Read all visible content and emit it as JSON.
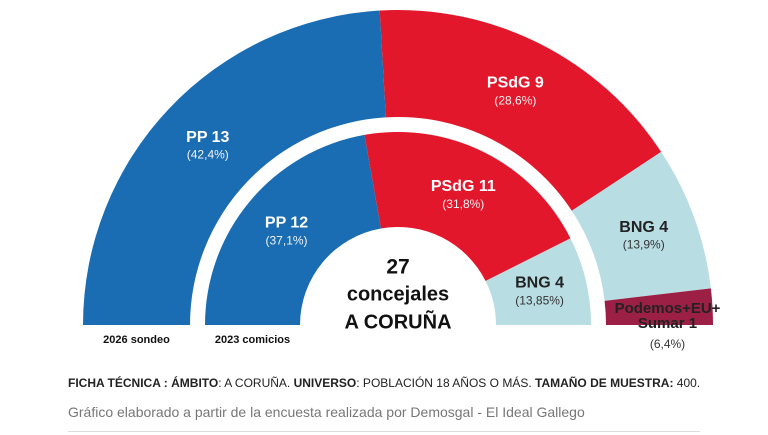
{
  "chart_data": {
    "type": "parliament",
    "total_seats": 27,
    "center_lines": [
      "concejales",
      "A CORUÑA"
    ],
    "rings": [
      {
        "name": "2026 sondeo",
        "segments": [
          {
            "label": "PP 13",
            "seats": 13,
            "share": 42.4,
            "share_label": "(42,4%)",
            "color": "#1a6db3"
          },
          {
            "label": "PSdG 9",
            "seats": 9,
            "share": 28.6,
            "share_label": "(28,6%)",
            "color": "#e3172c"
          },
          {
            "label": "BNG 4",
            "seats": 4,
            "share": 13.9,
            "share_label": "(13,9%)",
            "color": "#b8dde2"
          },
          {
            "label": [
              "Podemos+EU+",
              "Sumar  1"
            ],
            "seats": 1,
            "share": 6.4,
            "share_label": "(6,4%)",
            "color": "#9c2046"
          }
        ]
      },
      {
        "name": "2023 comicios",
        "segments": [
          {
            "label": "PP 12",
            "seats": 12,
            "share": 37.1,
            "share_label": "(37,1%)",
            "color": "#1a6db3"
          },
          {
            "label": "PSdG 11",
            "seats": 11,
            "share": 31.8,
            "share_label": "(31,8%)",
            "color": "#e3172c"
          },
          {
            "label": "BNG 4",
            "seats": 4,
            "share": 13.85,
            "share_label": "(13,85%)",
            "color": "#b8dde2"
          }
        ]
      }
    ]
  },
  "footer": {
    "ficha": [
      {
        "text": "FICHA TÉCNICA : ",
        "bold": true
      },
      {
        "text": "ÁMBITO",
        "bold": true
      },
      {
        "text": ": A CORUÑA. ",
        "bold": false
      },
      {
        "text": "UNIVERSO",
        "bold": true
      },
      {
        "text": ": POBLACIÓN 18 AÑOS O MÁS. ",
        "bold": false
      },
      {
        "text": "TAMAÑO DE MUESTRA:",
        "bold": true
      },
      {
        "text": " 400.",
        "bold": false
      }
    ],
    "source": "Gráfico elaborado a partir de la encuesta realizada por Demosgal - El Ideal Gallego"
  }
}
